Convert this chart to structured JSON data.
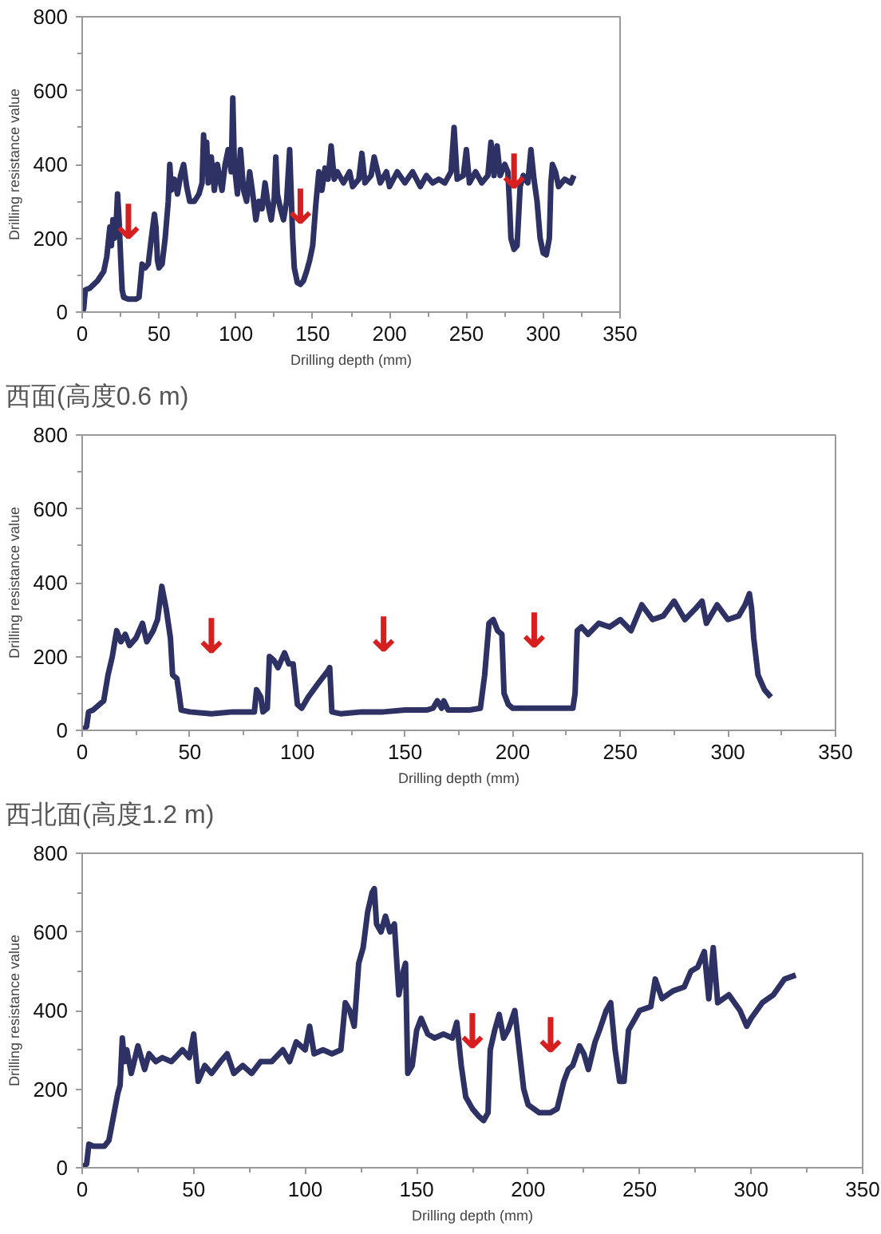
{
  "chart_data": [
    {
      "type": "line",
      "xlabel": "Drilling depth (mm)",
      "ylabel": "Drilling resistance value",
      "xlim": [
        0,
        350
      ],
      "ylim": [
        0,
        800
      ],
      "xticks": [
        0,
        50,
        100,
        150,
        200,
        250,
        300,
        350
      ],
      "yticks": [
        0,
        200,
        400,
        600,
        800
      ],
      "grid": false,
      "series": [
        {
          "color": "#2e3163",
          "x": [
            0,
            1,
            2,
            5,
            10,
            14,
            16,
            18,
            19,
            20,
            21,
            22,
            23,
            24,
            25,
            26,
            27,
            30,
            35,
            37,
            39,
            41,
            43,
            45,
            47,
            48,
            49,
            50,
            52,
            54,
            56,
            57,
            58,
            60,
            62,
            64,
            66,
            68,
            70,
            73,
            76,
            78,
            79,
            80,
            81,
            82,
            84,
            86,
            88,
            90,
            91,
            93,
            95,
            97,
            98,
            99,
            101,
            103,
            105,
            107,
            109,
            111,
            113,
            115,
            117,
            119,
            121,
            123,
            125,
            126,
            127,
            129,
            131,
            133,
            135,
            136,
            137,
            138,
            140,
            142,
            144,
            146,
            148,
            150,
            152,
            154,
            156,
            158,
            160,
            162,
            164,
            166,
            170,
            174,
            176,
            180,
            182,
            184,
            188,
            190,
            194,
            198,
            200,
            205,
            210,
            215,
            220,
            224,
            228,
            232,
            236,
            240,
            242,
            244,
            248,
            250,
            252,
            256,
            260,
            264,
            266,
            268,
            270,
            272,
            275,
            277,
            278,
            279,
            281,
            283,
            285,
            287,
            290,
            292,
            294,
            296,
            298,
            300,
            302,
            304,
            305,
            306,
            308,
            310,
            314,
            318,
            320
          ],
          "values": [
            0,
            10,
            60,
            65,
            85,
            110,
            150,
            230,
            180,
            250,
            200,
            230,
            320,
            250,
            150,
            60,
            40,
            35,
            35,
            40,
            130,
            120,
            130,
            200,
            265,
            230,
            140,
            120,
            130,
            200,
            300,
            400,
            330,
            360,
            320,
            370,
            400,
            340,
            300,
            300,
            320,
            350,
            480,
            400,
            460,
            350,
            420,
            330,
            400,
            350,
            330,
            400,
            440,
            380,
            580,
            400,
            320,
            440,
            330,
            300,
            380,
            320,
            250,
            300,
            280,
            350,
            290,
            250,
            310,
            420,
            320,
            280,
            250,
            300,
            440,
            320,
            200,
            120,
            80,
            75,
            85,
            110,
            140,
            180,
            290,
            380,
            330,
            390,
            360,
            450,
            360,
            380,
            350,
            380,
            340,
            360,
            430,
            350,
            370,
            420,
            350,
            380,
            340,
            380,
            350,
            380,
            340,
            370,
            350,
            360,
            350,
            380,
            500,
            360,
            370,
            440,
            350,
            380,
            350,
            370,
            460,
            370,
            450,
            370,
            400,
            380,
            300,
            200,
            170,
            180,
            340,
            370,
            350,
            440,
            360,
            300,
            200,
            160,
            155,
            200,
            350,
            400,
            380,
            340,
            360,
            350,
            370
          ]
        }
      ],
      "annotations": [
        {
          "text": "↓",
          "x": 30,
          "y": 35
        },
        {
          "text": "↓",
          "x": 142,
          "y": 75
        },
        {
          "text": "↓",
          "x": 281,
          "y": 170
        },
        "西面(高度0.6 m)"
      ]
    },
    {
      "type": "line",
      "xlabel": "Drilling depth (mm)",
      "ylabel": "Drilling resistance value",
      "xlim": [
        0,
        350
      ],
      "ylim": [
        0,
        800
      ],
      "xticks": [
        0,
        50,
        100,
        150,
        200,
        250,
        300,
        350
      ],
      "yticks": [
        0,
        200,
        400,
        600,
        800
      ],
      "grid": false,
      "series": [
        {
          "color": "#2e3163",
          "x": [
            0,
            2,
            3,
            5,
            8,
            10,
            12,
            14,
            16,
            18,
            20,
            22,
            25,
            28,
            30,
            33,
            35,
            37,
            39,
            41,
            42,
            44,
            45,
            46,
            50,
            60,
            70,
            80,
            81,
            83,
            84,
            86,
            87,
            89,
            91,
            94,
            96,
            98,
            100,
            102,
            105,
            110,
            114,
            115,
            116,
            120,
            130,
            140,
            150,
            160,
            163,
            165,
            167,
            168,
            170,
            180,
            185,
            187,
            189,
            191,
            193,
            195,
            196,
            198,
            200,
            210,
            220,
            228,
            229,
            230,
            232,
            235,
            240,
            245,
            250,
            255,
            260,
            265,
            270,
            275,
            280,
            285,
            288,
            290,
            295,
            300,
            305,
            308,
            310,
            311,
            312,
            314,
            317,
            320
          ],
          "values": [
            0,
            10,
            50,
            55,
            70,
            80,
            150,
            200,
            270,
            240,
            260,
            230,
            250,
            290,
            240,
            270,
            300,
            390,
            330,
            250,
            150,
            140,
            100,
            55,
            50,
            45,
            50,
            50,
            110,
            90,
            50,
            60,
            200,
            190,
            170,
            210,
            180,
            180,
            70,
            60,
            90,
            130,
            160,
            170,
            50,
            45,
            50,
            50,
            55,
            55,
            60,
            80,
            60,
            80,
            55,
            55,
            60,
            150,
            290,
            300,
            270,
            260,
            100,
            70,
            60,
            60,
            60,
            60,
            100,
            270,
            280,
            260,
            290,
            280,
            300,
            270,
            340,
            300,
            310,
            350,
            300,
            330,
            350,
            290,
            340,
            300,
            310,
            340,
            370,
            330,
            250,
            150,
            110,
            90
          ]
        }
      ],
      "annotations": [
        {
          "text": "↓",
          "x": 60,
          "y": 45
        },
        {
          "text": "↓",
          "x": 140,
          "y": 50
        },
        {
          "text": "↓",
          "x": 210,
          "y": 60
        },
        "西北面(高度1.2 m)"
      ]
    },
    {
      "type": "line",
      "xlabel": "Drilling depth (mm)",
      "ylabel": "Drilling resistance value",
      "xlim": [
        0,
        350
      ],
      "ylim": [
        0,
        800
      ],
      "xticks": [
        0,
        50,
        100,
        150,
        200,
        250,
        300,
        350
      ],
      "yticks": [
        0,
        200,
        400,
        600,
        800
      ],
      "grid": false,
      "series": [
        {
          "color": "#2e3163",
          "x": [
            0,
            2,
            3,
            5,
            10,
            12,
            14,
            16,
            17,
            18,
            19,
            20,
            22,
            25,
            28,
            30,
            33,
            36,
            40,
            45,
            48,
            50,
            52,
            55,
            58,
            62,
            65,
            68,
            72,
            76,
            80,
            85,
            90,
            93,
            96,
            100,
            102,
            104,
            108,
            112,
            116,
            118,
            120,
            122,
            124,
            126,
            128,
            130,
            131,
            132,
            134,
            136,
            138,
            140,
            142,
            144,
            145,
            146,
            148,
            150,
            152,
            155,
            158,
            162,
            166,
            168,
            170,
            172,
            175,
            178,
            180,
            182,
            183,
            185,
            187,
            189,
            191,
            194,
            196,
            198,
            200,
            205,
            210,
            213,
            216,
            218,
            220,
            223,
            225,
            227,
            230,
            232,
            235,
            237,
            239,
            241,
            243,
            245,
            247,
            250,
            255,
            257,
            260,
            265,
            270,
            273,
            276,
            279,
            281,
            283,
            285,
            290,
            295,
            298,
            300,
            305,
            310,
            315,
            320
          ],
          "values": [
            0,
            10,
            60,
            55,
            55,
            70,
            130,
            190,
            210,
            330,
            270,
            300,
            240,
            310,
            250,
            290,
            270,
            280,
            270,
            300,
            280,
            340,
            220,
            260,
            240,
            270,
            290,
            240,
            260,
            240,
            270,
            270,
            300,
            270,
            320,
            300,
            360,
            290,
            300,
            290,
            300,
            420,
            400,
            360,
            520,
            560,
            650,
            700,
            710,
            620,
            600,
            640,
            600,
            620,
            440,
            500,
            520,
            240,
            260,
            350,
            380,
            340,
            330,
            340,
            330,
            370,
            260,
            180,
            150,
            130,
            120,
            140,
            300,
            350,
            390,
            330,
            350,
            400,
            300,
            200,
            160,
            140,
            140,
            150,
            220,
            250,
            260,
            310,
            290,
            250,
            320,
            350,
            400,
            420,
            300,
            220,
            220,
            350,
            370,
            400,
            410,
            480,
            430,
            450,
            460,
            500,
            510,
            550,
            430,
            560,
            420,
            440,
            400,
            360,
            380,
            420,
            440,
            480,
            490
          ]
        }
      ],
      "annotations": [
        {
          "text": "↓",
          "x": 175,
          "y": 150
        },
        {
          "text": "↓",
          "x": 210,
          "y": 140
        }
      ]
    }
  ]
}
